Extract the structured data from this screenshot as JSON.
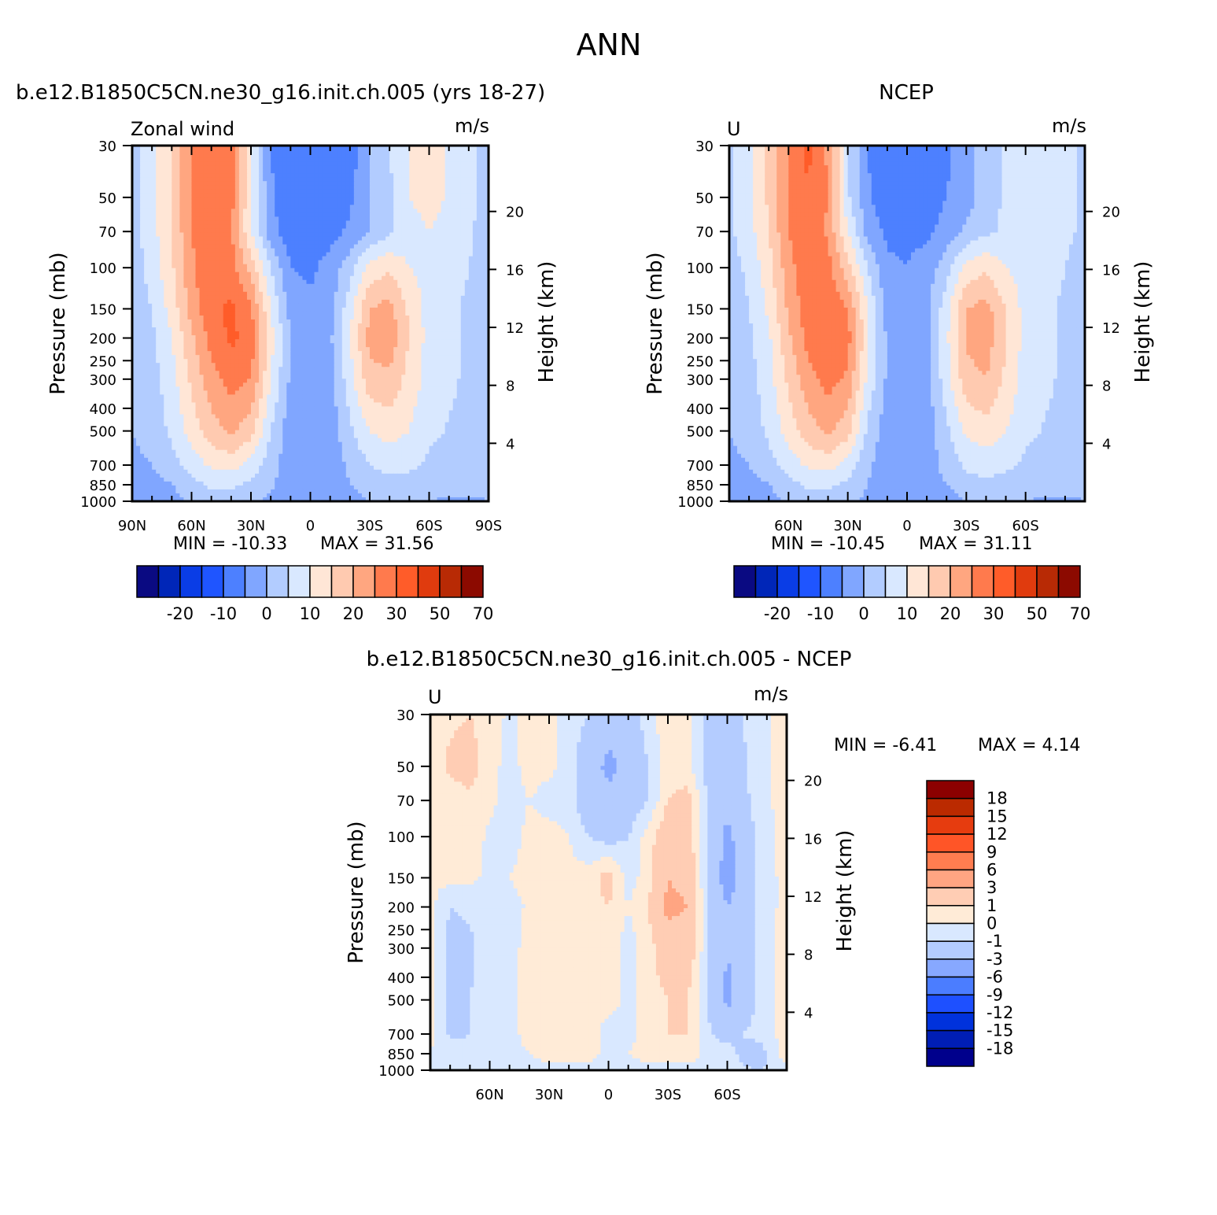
{
  "page_title": "ANN",
  "colors": {
    "top_palette": [
      "#0a0a82",
      "#0026b8",
      "#0a3de6",
      "#1f55ff",
      "#4d80ff",
      "#80a6ff",
      "#b2ccff",
      "#d9e8ff",
      "#ffe6d6",
      "#ffcab0",
      "#ffa680",
      "#ff7a4d",
      "#ff5c29",
      "#e03b0e",
      "#b82a05",
      "#8c0a00"
    ],
    "diff_palette": [
      "#00008c",
      "#001eb4",
      "#0032dc",
      "#1e50ff",
      "#4b7dff",
      "#87a8ff",
      "#b4ccff",
      "#d9e8ff",
      "#ffebd7",
      "#ffcdb4",
      "#ffa582",
      "#ff7d50",
      "#ff5527",
      "#e63c0f",
      "#bb2a00",
      "#8c0000"
    ]
  },
  "chart_data": [
    {
      "id": "model",
      "type": "heatmap",
      "subtitle": "b.e12.B1850C5CN.ne30_g16.init.ch.005 (yrs 18-27)",
      "left_label": "Zonal wind",
      "units": "m/s",
      "ylabel": "Pressure (mb)",
      "y2label": "Height (km)",
      "xticks": [
        "90N",
        "60N",
        "30N",
        "0",
        "30S",
        "60S",
        "90S"
      ],
      "xlim": [
        "90N",
        "90S"
      ],
      "yticks": [
        30,
        50,
        70,
        100,
        150,
        200,
        250,
        300,
        400,
        500,
        700,
        850,
        1000
      ],
      "y2ticks": [
        20,
        16,
        12,
        8,
        4
      ],
      "ylim": [
        1000,
        30
      ],
      "y_scale": "log",
      "min_label": "MIN = -10.33",
      "max_label": "MAX =  31.56",
      "min": -10.33,
      "max": 31.56,
      "colorbar_labels": [
        "-20",
        "-10",
        "0",
        "10",
        "20",
        "30",
        "50",
        "70"
      ],
      "field": {
        "lat": [
          -90,
          -75,
          -60,
          -50,
          -40,
          -30,
          -20,
          -10,
          0,
          10,
          20,
          30,
          40,
          50,
          60,
          70,
          80,
          90
        ],
        "plev": [
          30,
          50,
          70,
          100,
          150,
          200,
          300,
          500,
          700,
          850,
          1000
        ],
        "values": [
          [
            3,
            8,
            12,
            10,
            5,
            0,
            -8,
            -10,
            -10,
            -10,
            -5,
            10,
            28,
            30,
            25,
            15,
            8,
            3
          ],
          [
            3,
            8,
            12,
            10,
            4,
            0,
            -6,
            -9,
            -8,
            -10,
            -4,
            10,
            27,
            30,
            25,
            15,
            8,
            3
          ],
          [
            3,
            7,
            10,
            8,
            4,
            0,
            -4,
            -7,
            -8,
            -8,
            -3,
            10,
            26,
            29,
            25,
            15,
            8,
            3
          ],
          [
            3,
            6,
            8,
            10,
            14,
            12,
            3,
            -3,
            -6,
            -5,
            5,
            18,
            27,
            30,
            24,
            14,
            7,
            2
          ],
          [
            3,
            5,
            8,
            14,
            22,
            20,
            8,
            -2,
            -4,
            -2,
            10,
            26,
            31,
            29,
            22,
            12,
            5,
            2
          ],
          [
            3,
            5,
            8,
            15,
            23,
            22,
            10,
            -1,
            -4,
            0,
            12,
            28,
            31,
            27,
            19,
            10,
            4,
            1
          ],
          [
            3,
            5,
            8,
            13,
            19,
            18,
            8,
            -2,
            -4,
            -1,
            10,
            25,
            27,
            23,
            16,
            8,
            3,
            1
          ],
          [
            3,
            4,
            6,
            10,
            12,
            10,
            4,
            -3,
            -4,
            -3,
            5,
            17,
            21,
            18,
            12,
            6,
            2,
            0
          ],
          [
            2,
            3,
            4,
            6,
            7,
            5,
            1,
            -3,
            -4,
            -3,
            2,
            8,
            12,
            11,
            7,
            3,
            0,
            -1
          ],
          [
            1,
            2,
            2,
            3,
            3,
            2,
            0,
            -3,
            -4,
            -3,
            1,
            4,
            6,
            6,
            3,
            0,
            -2,
            -2
          ],
          [
            0,
            -1,
            0,
            1,
            1,
            0,
            -2,
            -3,
            -3,
            -3,
            -1,
            1,
            3,
            3,
            1,
            -2,
            -3,
            -3
          ]
        ]
      }
    },
    {
      "id": "ncep",
      "type": "heatmap",
      "subtitle": "NCEP",
      "left_label": "U",
      "units": "m/s",
      "ylabel": "Pressure (mb)",
      "y2label": "Height (km)",
      "xticks": [
        "60N",
        "30N",
        "0",
        "30S",
        "60S"
      ],
      "yticks": [
        30,
        50,
        70,
        100,
        150,
        200,
        250,
        300,
        400,
        500,
        700,
        850,
        1000
      ],
      "y2ticks": [
        20,
        16,
        12,
        8,
        4
      ],
      "ylim": [
        1000,
        30
      ],
      "y_scale": "log",
      "min_label": "MIN = -10.45",
      "max_label": "MAX =  31.11",
      "min": -10.45,
      "max": 31.11,
      "colorbar_labels": [
        "-20",
        "-10",
        "0",
        "10",
        "20",
        "30",
        "50",
        "70"
      ],
      "field": {
        "lat": [
          -90,
          -75,
          -60,
          -50,
          -40,
          -30,
          -20,
          -10,
          0,
          10,
          20,
          30,
          40,
          50,
          60,
          70,
          80,
          90
        ],
        "plev": [
          30,
          50,
          70,
          100,
          150,
          200,
          300,
          500,
          700,
          850,
          1000
        ],
        "values": [
          [
            4,
            7,
            8,
            6,
            2,
            -2,
            -6,
            -10,
            -8,
            -10,
            -5,
            6,
            24,
            31,
            26,
            16,
            8,
            4
          ],
          [
            4,
            7,
            8,
            6,
            2,
            -2,
            -5,
            -8,
            -6,
            -9,
            -4,
            6,
            25,
            30,
            26,
            16,
            8,
            4
          ],
          [
            4,
            7,
            8,
            6,
            4,
            1,
            -3,
            -6,
            -6,
            -6,
            -2,
            10,
            24,
            29,
            25,
            15,
            8,
            4
          ],
          [
            3,
            6,
            8,
            10,
            14,
            12,
            3,
            -3,
            -5,
            -4,
            5,
            17,
            27,
            29,
            23,
            13,
            6,
            3
          ],
          [
            3,
            5,
            8,
            15,
            22,
            20,
            8,
            -1,
            -4,
            -2,
            10,
            25,
            29,
            28,
            21,
            11,
            5,
            2
          ],
          [
            3,
            5,
            8,
            15,
            23,
            21,
            9,
            -1,
            -4,
            -1,
            11,
            27,
            30,
            27,
            19,
            9,
            4,
            2
          ],
          [
            3,
            5,
            8,
            14,
            20,
            18,
            8,
            -2,
            -4,
            -1,
            9,
            24,
            27,
            23,
            16,
            8,
            3,
            1
          ],
          [
            3,
            4,
            6,
            10,
            13,
            11,
            4,
            -3,
            -4,
            -3,
            4,
            17,
            21,
            18,
            12,
            6,
            2,
            0
          ],
          [
            2,
            3,
            4,
            6,
            7,
            6,
            2,
            -3,
            -4,
            -3,
            1,
            8,
            12,
            11,
            7,
            3,
            0,
            -1
          ],
          [
            1,
            2,
            2,
            3,
            4,
            3,
            0,
            -3,
            -4,
            -3,
            0,
            4,
            6,
            6,
            3,
            0,
            -2,
            -3
          ],
          [
            0,
            -1,
            0,
            1,
            1,
            0,
            -2,
            -3,
            -3,
            -3,
            -1,
            1,
            3,
            3,
            1,
            -2,
            -3,
            -3
          ]
        ]
      }
    },
    {
      "id": "diff",
      "type": "heatmap",
      "subtitle": "b.e12.B1850C5CN.ne30_g16.init.ch.005 - NCEP",
      "left_label": "U",
      "units": "m/s",
      "ylabel": "Pressure (mb)",
      "y2label": "Height (km)",
      "xticks": [
        "60N",
        "30N",
        "0",
        "30S",
        "60S"
      ],
      "yticks": [
        30,
        50,
        70,
        100,
        150,
        200,
        250,
        300,
        400,
        500,
        700,
        850,
        1000
      ],
      "y2ticks": [
        20,
        16,
        12,
        8,
        4
      ],
      "ylim": [
        1000,
        30
      ],
      "y_scale": "log",
      "min_label": "MIN =   -6.41",
      "max_label": "MAX =    4.14",
      "min": -6.41,
      "max": 4.14,
      "colorbar_labels": [
        "18",
        "15",
        "12",
        "9",
        "6",
        "3",
        "1",
        "0",
        "-1",
        "-3",
        "-6",
        "-9",
        "-12",
        "-15",
        "-18"
      ],
      "field": {
        "lat": [
          -90,
          -75,
          -60,
          -50,
          -40,
          -30,
          -20,
          -10,
          0,
          10,
          20,
          30,
          40,
          50,
          60,
          70,
          80,
          90
        ],
        "plev": [
          30,
          50,
          70,
          100,
          150,
          200,
          300,
          500,
          700,
          850,
          1000
        ],
        "values": [
          [
            0.5,
            -0.5,
            -1.5,
            -1.2,
            0.5,
            0.8,
            -0.5,
            -1.5,
            -2,
            -1,
            -0.5,
            0.5,
            0.3,
            -0.2,
            0.5,
            1,
            0.8,
            0.5
          ],
          [
            0.5,
            -0.5,
            -2,
            -1.5,
            0.3,
            0.5,
            -1,
            -2.5,
            -3.5,
            -2,
            -0.5,
            0.3,
            0.5,
            -0.5,
            0.5,
            1.5,
            1.2,
            0.5
          ],
          [
            0.5,
            -0.5,
            -2.5,
            -1,
            1.5,
            1,
            -1,
            -2,
            -2.5,
            -2,
            -0.5,
            -0.5,
            0,
            -0.5,
            0.3,
            0.8,
            0.5,
            0.3
          ],
          [
            0.5,
            -0.8,
            -3.5,
            -1,
            1.5,
            2,
            0.5,
            -1,
            -1.5,
            -1,
            0,
            0.5,
            0.3,
            -0.5,
            -0.2,
            0.5,
            0.3,
            0.2
          ],
          [
            0.5,
            -1,
            -4,
            -1.2,
            2.5,
            3,
            0.5,
            -0.5,
            1.5,
            0.5,
            0.3,
            0.5,
            0.5,
            0,
            -0.3,
            0.3,
            0.3,
            0.2
          ],
          [
            0.5,
            -1,
            -3,
            -1,
            3,
            3.5,
            1,
            0,
            1,
            0.5,
            0.3,
            0.3,
            0.2,
            -0.5,
            -0.5,
            -0.8,
            -1,
            0.3
          ],
          [
            0.5,
            -0.8,
            -3,
            -0.8,
            2,
            2,
            0.5,
            -0.5,
            0.5,
            0.5,
            0.2,
            0.5,
            0.3,
            -0.3,
            -0.5,
            -1.2,
            -1.5,
            0.3
          ],
          [
            0.5,
            -1,
            -3.5,
            -1,
            1,
            1,
            0.5,
            -0.3,
            0.5,
            0.3,
            0.5,
            0.5,
            0.3,
            -0.3,
            -0.5,
            -1,
            -1.5,
            0.3
          ],
          [
            0.3,
            -0.5,
            -1.5,
            -0.8,
            1,
            1,
            0.5,
            -0.3,
            -0.5,
            0.5,
            0.5,
            0.5,
            0.3,
            -0.3,
            -0.5,
            -1,
            -1.2,
            0.2
          ],
          [
            0.8,
            -2,
            -0.5,
            -0.3,
            0.5,
            0.5,
            0.3,
            0,
            -0.3,
            0.3,
            0.5,
            0.3,
            0,
            -0.3,
            -0.3,
            -0.8,
            -0.5,
            0
          ],
          [
            -0.5,
            -1,
            -0.5,
            -0.3,
            -0.3,
            -0.3,
            -0.3,
            -0.3,
            -0.3,
            -0.3,
            -0.3,
            -0.3,
            -0.3,
            -0.3,
            -0.3,
            -0.5,
            -0.5,
            -0.3
          ]
        ]
      }
    }
  ]
}
